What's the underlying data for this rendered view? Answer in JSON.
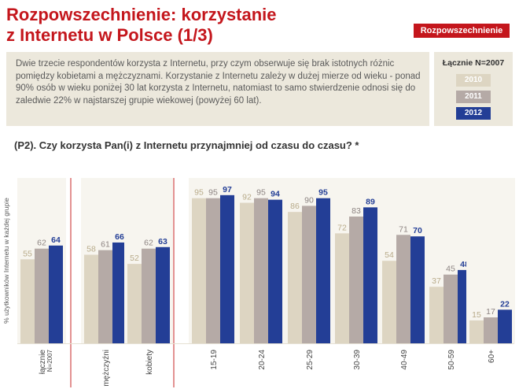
{
  "header": {
    "title_line1": "Rozpowszechnienie: korzystanie",
    "title_line2": "z Internetu w Polsce (1/3)",
    "badge": "Rozpowszechnienie"
  },
  "info_text": "Dwie trzecie respondentów korzysta z Internetu, przy czym obserwuje się brak istotnych różnic pomiędzy kobietami a mężczyznami. Korzystanie z Internetu zależy w dużej mierze od wieku - ponad 90% osób w wieku poniżej 30 lat korzysta z Internetu, natomiast to samo stwierdzenie odnosi się do zaledwie 22% w najstarszej grupie wiekowej (powyżej 60 lat).",
  "legend": {
    "title": "Łącznie N=2007",
    "items": [
      "2010",
      "2011",
      "2012"
    ]
  },
  "colors": {
    "brand_red": "#c4161c",
    "s2010": "#ddd5c2",
    "s2011": "#b5aaa6",
    "s2012": "#233e96",
    "divider": "#d04a4a"
  },
  "chart_data": {
    "type": "bar",
    "title": "(P2). Czy korzysta Pan(i) z Internetu przynajmniej od czasu do czasu? *",
    "ylabel": "% użytkowników Internetu w każdej grupie",
    "ylim": [
      0,
      100
    ],
    "categories": [
      "łącznie N=2007",
      "mężczyźni",
      "kobiety",
      "15-19",
      "20-24",
      "25-29",
      "30-39",
      "40-49",
      "50-59",
      "60+"
    ],
    "groups": [
      [
        "łącznie N=2007"
      ],
      [
        "mężczyźni",
        "kobiety"
      ],
      [
        "15-19",
        "20-24",
        "25-29",
        "30-39",
        "40-49",
        "50-59",
        "60+"
      ]
    ],
    "series": [
      {
        "name": "2010",
        "values": [
          55,
          58,
          52,
          95,
          92,
          86,
          72,
          54,
          37,
          15
        ]
      },
      {
        "name": "2011",
        "values": [
          62,
          61,
          62,
          95,
          95,
          90,
          83,
          71,
          45,
          17
        ]
      },
      {
        "name": "2012",
        "values": [
          64,
          66,
          63,
          97,
          94,
          95,
          89,
          70,
          48,
          22
        ]
      }
    ]
  }
}
